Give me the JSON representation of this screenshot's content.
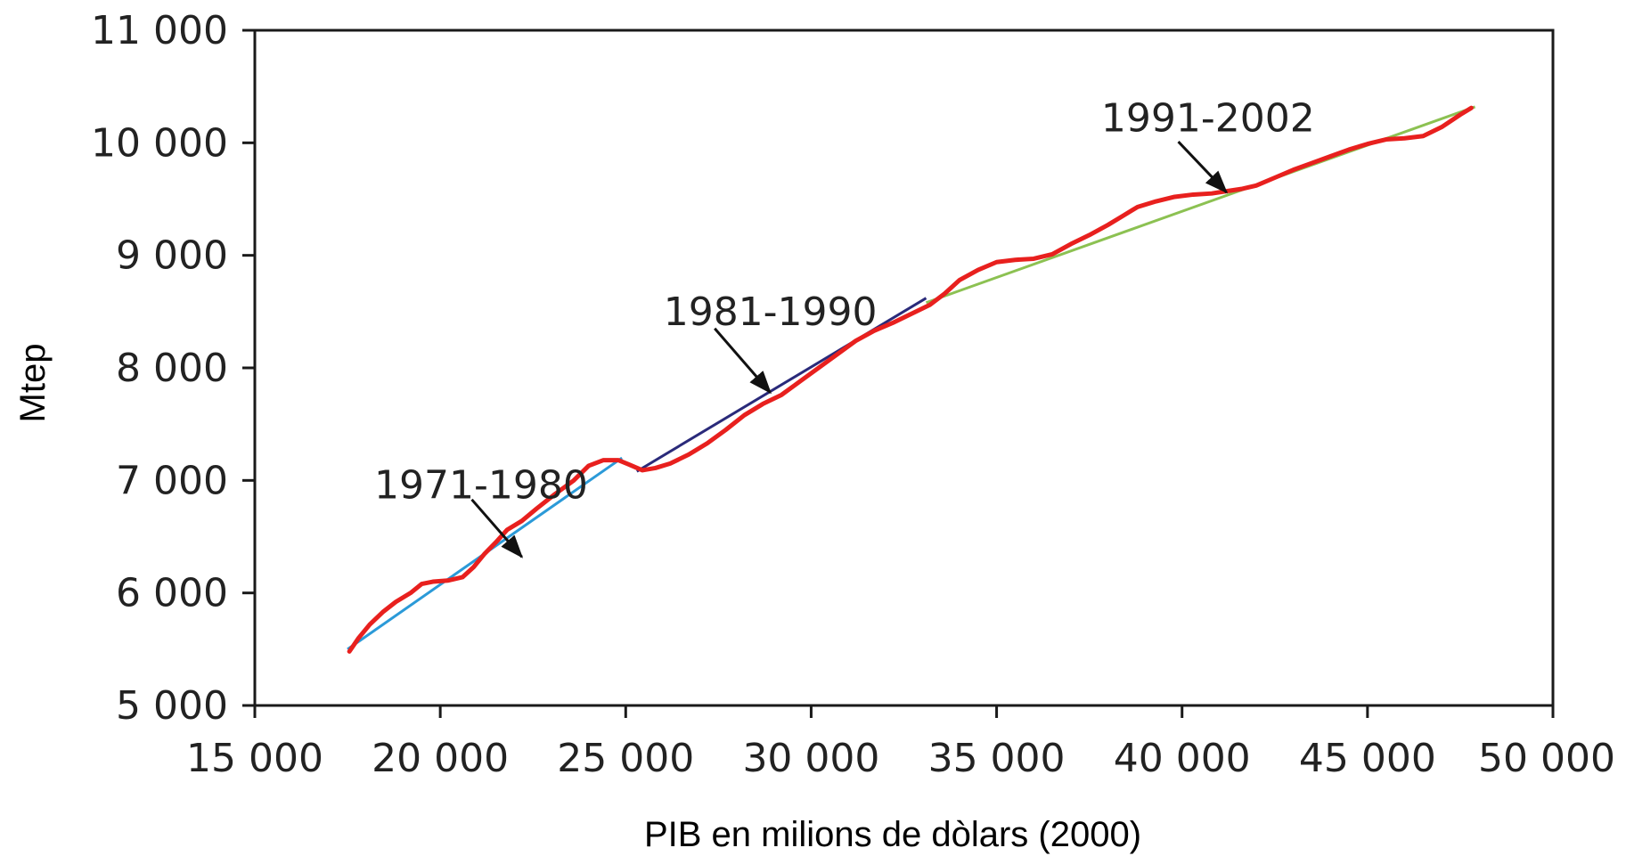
{
  "chart_data": {
    "type": "line",
    "title": "",
    "xlabel": "PIB en milions de dòlars (2000)",
    "ylabel": "Mtep",
    "xlim": [
      15000,
      50000
    ],
    "ylim": [
      5000,
      11000
    ],
    "x_ticks": [
      15000,
      20000,
      25000,
      30000,
      35000,
      40000,
      45000,
      50000
    ],
    "x_tick_labels": [
      "15 000",
      "20 000",
      "25 000",
      "30 000",
      "35 000",
      "40 000",
      "45 000",
      "50 000"
    ],
    "y_ticks": [
      5000,
      6000,
      7000,
      8000,
      9000,
      10000,
      11000
    ],
    "y_tick_labels": [
      "5 000",
      "6 000",
      "7 000",
      "8 000",
      "9 000",
      "10 000",
      "11 000"
    ],
    "grid": false,
    "legend": "none",
    "series": [
      {
        "color": "#e8201e",
        "points": [
          [
            17550,
            5480
          ],
          [
            17800,
            5600
          ],
          [
            18100,
            5720
          ],
          [
            18450,
            5830
          ],
          [
            18800,
            5920
          ],
          [
            19200,
            6000
          ],
          [
            19500,
            6080
          ],
          [
            19800,
            6100
          ],
          [
            20200,
            6110
          ],
          [
            20600,
            6140
          ],
          [
            20900,
            6230
          ],
          [
            21200,
            6350
          ],
          [
            21500,
            6450
          ],
          [
            21800,
            6560
          ],
          [
            22200,
            6640
          ],
          [
            22600,
            6750
          ],
          [
            23100,
            6880
          ],
          [
            23600,
            7000
          ],
          [
            24000,
            7130
          ],
          [
            24400,
            7180
          ],
          [
            24800,
            7180
          ],
          [
            25100,
            7140
          ],
          [
            25450,
            7090
          ],
          [
            25800,
            7110
          ],
          [
            26200,
            7150
          ],
          [
            26700,
            7230
          ],
          [
            27200,
            7330
          ],
          [
            27700,
            7450
          ],
          [
            28200,
            7580
          ],
          [
            28700,
            7680
          ],
          [
            29200,
            7760
          ],
          [
            29700,
            7880
          ],
          [
            30200,
            8000
          ],
          [
            30700,
            8120
          ],
          [
            31200,
            8240
          ],
          [
            31700,
            8330
          ],
          [
            32200,
            8400
          ],
          [
            32700,
            8480
          ],
          [
            33200,
            8560
          ],
          [
            33600,
            8660
          ],
          [
            34000,
            8780
          ],
          [
            34500,
            8870
          ],
          [
            35000,
            8940
          ],
          [
            35500,
            8960
          ],
          [
            36000,
            8970
          ],
          [
            36500,
            9010
          ],
          [
            37000,
            9100
          ],
          [
            37500,
            9180
          ],
          [
            38000,
            9270
          ],
          [
            38400,
            9350
          ],
          [
            38800,
            9430
          ],
          [
            39300,
            9480
          ],
          [
            39800,
            9520
          ],
          [
            40300,
            9540
          ],
          [
            40800,
            9550
          ],
          [
            41200,
            9570
          ],
          [
            41600,
            9590
          ],
          [
            42000,
            9620
          ],
          [
            42500,
            9690
          ],
          [
            43000,
            9760
          ],
          [
            43500,
            9820
          ],
          [
            44000,
            9880
          ],
          [
            44500,
            9940
          ],
          [
            45000,
            9990
          ],
          [
            45500,
            10030
          ],
          [
            46000,
            10040
          ],
          [
            46500,
            10060
          ],
          [
            47000,
            10140
          ],
          [
            47500,
            10250
          ],
          [
            47800,
            10310
          ]
        ]
      }
    ],
    "trend_lines": [
      {
        "color": "#2b9ad8",
        "points": [
          [
            17500,
            5500
          ],
          [
            24900,
            7200
          ]
        ]
      },
      {
        "color": "#2a2a7a",
        "points": [
          [
            25300,
            7080
          ],
          [
            33100,
            8620
          ]
        ]
      },
      {
        "color": "#8cc152",
        "points": [
          [
            33100,
            8580
          ],
          [
            47900,
            10320
          ]
        ]
      }
    ],
    "annotations": [
      {
        "text": "1971-1980",
        "label_at": [
          21100,
          6960
        ],
        "arrow_from": [
          20850,
          6830
        ],
        "arrow_to": [
          22200,
          6320
        ]
      },
      {
        "text": "1981-1990",
        "label_at": [
          28900,
          8500
        ],
        "arrow_from": [
          27400,
          8350
        ],
        "arrow_to": [
          28900,
          7780
        ]
      },
      {
        "text": "1991-2002",
        "label_at": [
          40700,
          10220
        ],
        "arrow_from": [
          39900,
          10010
        ],
        "arrow_to": [
          41200,
          9560
        ]
      }
    ]
  }
}
